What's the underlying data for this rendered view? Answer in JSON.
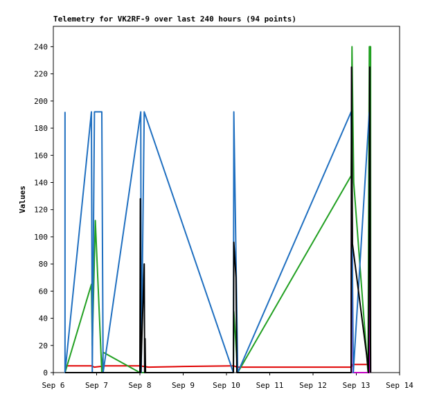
{
  "chart_data": {
    "type": "line",
    "title": "Telemetry for VK2RF-9 over last 240 hours (94 points)",
    "y_label": "Values",
    "xlim": [
      6,
      14
    ],
    "xticks": [
      {
        "value": 6,
        "label": "Sep 6"
      },
      {
        "value": 7,
        "label": "Sep 7"
      },
      {
        "value": 8,
        "label": "Sep 8"
      },
      {
        "value": 9,
        "label": "Sep 9"
      },
      {
        "value": 10,
        "label": "Sep 10"
      },
      {
        "value": 11,
        "label": "Sep 11"
      },
      {
        "value": 12,
        "label": "Sep 12"
      },
      {
        "value": 13,
        "label": "Sep 13"
      },
      {
        "value": 14,
        "label": "Sep 14"
      }
    ],
    "ylim": [
      0,
      255
    ],
    "yticks": [
      0,
      20,
      40,
      60,
      80,
      100,
      120,
      140,
      160,
      180,
      200,
      220,
      240
    ],
    "grid": false,
    "series": [
      {
        "color": "#e00000",
        "x": [
          6.27,
          6.88,
          6.95,
          7.2,
          8.0,
          8.2,
          9.0,
          10.16,
          10.26,
          12.88,
          12.9,
          13.33
        ],
        "values": [
          5,
          5,
          4,
          5,
          5,
          4,
          4.5,
          5,
          4,
          4,
          6,
          6
        ]
      },
      {
        "color": "#22a022",
        "x": [
          6.27,
          6.88,
          6.9,
          6.97,
          7.12,
          7.15,
          8.0,
          10.16,
          10.17,
          10.26,
          12.88,
          12.9,
          12.94,
          13.27,
          13.3,
          13.33,
          13.33
        ],
        "values": [
          0,
          65,
          20,
          112,
          0,
          15,
          0,
          0,
          45,
          0,
          145,
          240,
          140,
          0,
          240,
          240,
          0
        ]
      },
      {
        "color": "#c000c0",
        "x": [
          12.88,
          12.89,
          12.92,
          13.3,
          13.31,
          13.33
        ],
        "values": [
          0,
          225,
          0,
          0,
          225,
          0
        ]
      },
      {
        "color": "#1f6fc0",
        "x": [
          6.27,
          6.27,
          6.88,
          6.9,
          6.95,
          7.12,
          7.15,
          8.02,
          8.03,
          8.1,
          10.16,
          10.17,
          10.26,
          12.88,
          12.93,
          13.3
        ],
        "values": [
          192,
          0,
          192,
          0,
          192,
          192,
          0,
          192,
          0,
          192,
          0,
          192,
          0,
          192,
          0,
          192
        ]
      },
      {
        "color": "#000000",
        "x": [
          6.27,
          8.0,
          8.01,
          8.02,
          8.1,
          8.11,
          8.12,
          8.13,
          10.16,
          10.17,
          10.22,
          10.24,
          12.88,
          12.89,
          12.91,
          13.25,
          13.28,
          13.3,
          13.31,
          13.33
        ],
        "values": [
          0,
          0,
          128,
          0,
          80,
          0,
          25,
          0,
          0,
          96,
          70,
          0,
          0,
          225,
          95,
          10,
          0,
          128,
          225,
          0
        ]
      }
    ]
  }
}
